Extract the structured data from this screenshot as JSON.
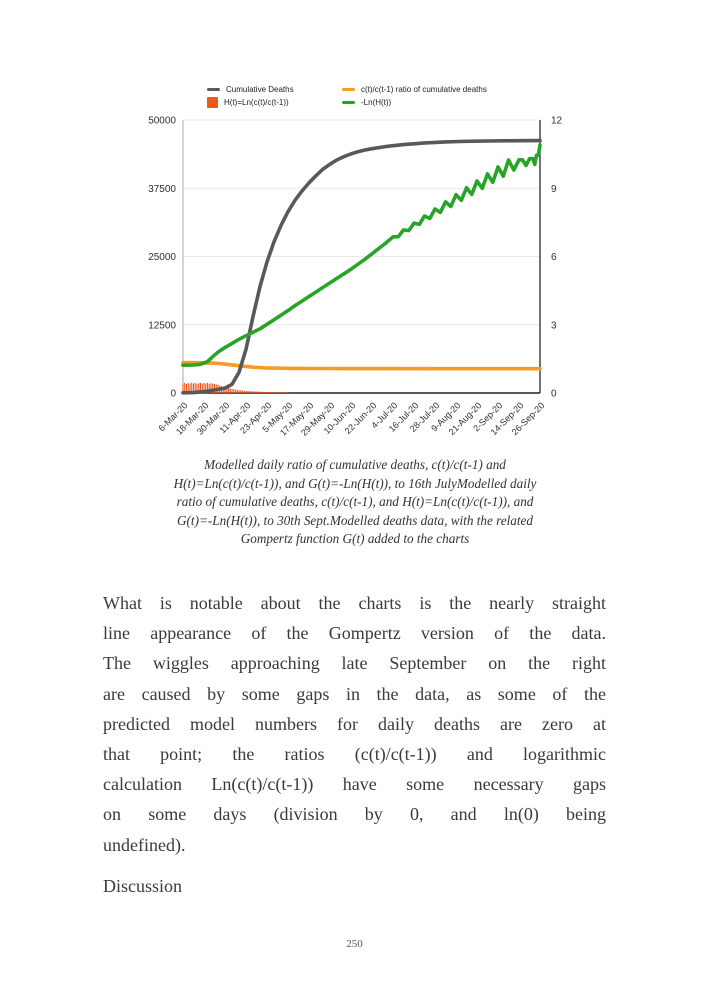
{
  "page": {
    "number": "250"
  },
  "section_heading": "Discussion",
  "figure": {
    "legend": [
      {
        "label": "Cumulative Deaths",
        "marker": "line",
        "color": "#59595b"
      },
      {
        "label": "c(t)/c(t-1) ratio of cumulative deaths",
        "marker": "line",
        "color": "#f79a28"
      },
      {
        "label": "H(t)=Ln(c(t)/c(t-1))",
        "marker": "square",
        "color": "#ee581c"
      },
      {
        "label": "-Ln(H(t))",
        "marker": "line",
        "color": "#28a428"
      }
    ],
    "caption_lines": [
      "Modelled daily ratio of cumulative deaths, c(t)/c(t-1) and",
      "H(t)=Ln(c(t)/c(t-1)), and G(t)=-Ln(H(t)), to 16th JulyModelled daily",
      "ratio of cumulative deaths, c(t)/c(t-1), and H(t)=Ln(c(t)/c(t-1)), and",
      "G(t)=-Ln(H(t)), to 30th Sept.Modelled deaths data, with the related",
      "Gompertz function G(t) added to the charts"
    ]
  },
  "body": {
    "lines": [
      "What is notable about the charts is the nearly straight",
      "line appearance of the Gompertz version of the data.",
      "The wiggles approaching late September on the right",
      "are caused by some gaps in the data, as some of the",
      "predicted model numbers for daily deaths are zero at",
      "that point; the ratios (c(t)/c(t-1)) and logarithmic",
      "calculation Ln(c(t)/c(t-1)) have some necessary gaps",
      "on some days (division by 0, and ln(0) being",
      "undefined)."
    ]
  },
  "chart_data": {
    "type": "line",
    "domain_days": [
      0,
      204
    ],
    "x_axis": {
      "tick_interval_days": 12,
      "categories": [
        "6-Mar-20",
        "18-Mar-20",
        "30-Mar-20",
        "11-Apr-20",
        "23-Apr-20",
        "5-May-20",
        "17-May-20",
        "29-May-20",
        "10-Jun-20",
        "22-Jun-20",
        "4-Jul-20",
        "16-Jul-20",
        "28-Jul-20",
        "9-Aug-20",
        "21-Aug-20",
        "2-Sep-20",
        "14-Sep-20",
        "26-Sep-20"
      ]
    },
    "left_axis": {
      "ticks": [
        0,
        12500,
        25000,
        37500,
        50000
      ],
      "range": [
        0,
        50000
      ]
    },
    "right_axis": {
      "ticks": [
        0,
        3,
        6,
        9,
        12
      ],
      "range": [
        0,
        12
      ]
    },
    "grid_color": "#e8e8e8",
    "series": [
      {
        "name": "Cumulative Deaths",
        "axis": "left",
        "type": "line",
        "color": "#59595b",
        "width": 3.6,
        "points": [
          [
            0,
            30
          ],
          [
            6,
            80
          ],
          [
            12,
            250
          ],
          [
            18,
            550
          ],
          [
            24,
            900
          ],
          [
            28,
            1600
          ],
          [
            32,
            3800
          ],
          [
            36,
            8000
          ],
          [
            40,
            14000
          ],
          [
            44,
            19500
          ],
          [
            48,
            24000
          ],
          [
            52,
            27700
          ],
          [
            56,
            30700
          ],
          [
            60,
            33200
          ],
          [
            64,
            35300
          ],
          [
            68,
            37000
          ],
          [
            72,
            38500
          ],
          [
            76,
            39800
          ],
          [
            80,
            41000
          ],
          [
            84,
            41900
          ],
          [
            88,
            42700
          ],
          [
            92,
            43300
          ],
          [
            96,
            43800
          ],
          [
            100,
            44200
          ],
          [
            104,
            44500
          ],
          [
            108,
            44750
          ],
          [
            112,
            44950
          ],
          [
            116,
            45150
          ],
          [
            120,
            45300
          ],
          [
            126,
            45500
          ],
          [
            132,
            45650
          ],
          [
            138,
            45800
          ],
          [
            144,
            45900
          ],
          [
            150,
            45980
          ],
          [
            158,
            46060
          ],
          [
            166,
            46120
          ],
          [
            174,
            46160
          ],
          [
            182,
            46190
          ],
          [
            192,
            46210
          ],
          [
            204,
            46220
          ]
        ]
      },
      {
        "name": "c(t)/c(t-1) ratio of cumulative deaths",
        "axis": "right",
        "type": "line",
        "color": "#f79a28",
        "width": 3.6,
        "points": [
          [
            0,
            1.33
          ],
          [
            8,
            1.33
          ],
          [
            12,
            1.325
          ],
          [
            16,
            1.315
          ],
          [
            20,
            1.3
          ],
          [
            24,
            1.27
          ],
          [
            28,
            1.235
          ],
          [
            32,
            1.2
          ],
          [
            36,
            1.165
          ],
          [
            40,
            1.135
          ],
          [
            44,
            1.115
          ],
          [
            48,
            1.1
          ],
          [
            52,
            1.093
          ],
          [
            58,
            1.087
          ],
          [
            64,
            1.083
          ],
          [
            72,
            1.079
          ],
          [
            82,
            1.076
          ],
          [
            95,
            1.074
          ],
          [
            115,
            1.072
          ],
          [
            150,
            1.07
          ],
          [
            204,
            1.07
          ]
        ]
      },
      {
        "name": "H(t)=Ln(c(t)/c(t-1))",
        "axis": "right",
        "type": "bar-markers",
        "color": "#ee581c",
        "start_day": 0,
        "values": [
          0.42,
          0.45,
          0.4,
          0.44,
          0.41,
          0.46,
          0.42,
          0.44,
          0.4,
          0.43,
          0.45,
          0.41,
          0.44,
          0.42,
          0.45,
          0.4,
          0.43,
          0.41,
          0.4,
          0.38,
          0.36,
          0.33,
          0.3,
          0.28,
          0.26,
          0.24,
          0.22,
          0.2,
          0.18,
          0.17,
          0.155,
          0.14,
          0.13,
          0.12,
          0.11,
          0.1,
          0.095,
          0.09,
          0.085,
          0.08,
          0.075,
          0.07,
          0.065,
          0.06,
          0.058,
          0.055,
          0.052,
          0.05,
          0.048,
          0.045,
          0.043,
          0.04,
          0.038,
          0.036,
          0.034,
          0.032,
          0.03,
          0.028,
          0.027,
          0.025,
          0.024
        ]
      },
      {
        "name": "-Ln(H(t))",
        "axis": "right",
        "type": "line",
        "color": "#28a428",
        "width": 3.6,
        "points": [
          [
            0,
            1.22
          ],
          [
            6,
            1.23
          ],
          [
            10,
            1.26
          ],
          [
            14,
            1.38
          ],
          [
            17,
            1.6
          ],
          [
            20,
            1.8
          ],
          [
            24,
            2.0
          ],
          [
            28,
            2.18
          ],
          [
            32,
            2.36
          ],
          [
            36,
            2.52
          ],
          [
            40,
            2.67
          ],
          [
            44,
            2.82
          ],
          [
            48,
            3.02
          ],
          [
            52,
            3.22
          ],
          [
            56,
            3.42
          ],
          [
            60,
            3.62
          ],
          [
            64,
            3.84
          ],
          [
            68,
            4.04
          ],
          [
            72,
            4.24
          ],
          [
            76,
            4.44
          ],
          [
            80,
            4.64
          ],
          [
            84,
            4.84
          ],
          [
            88,
            5.04
          ],
          [
            92,
            5.24
          ],
          [
            96,
            5.44
          ],
          [
            100,
            5.66
          ],
          [
            104,
            5.88
          ],
          [
            108,
            6.12
          ],
          [
            112,
            6.36
          ],
          [
            116,
            6.6
          ],
          [
            120,
            6.86
          ],
          [
            123,
            6.87
          ],
          [
            126,
            7.17
          ],
          [
            129,
            7.14
          ],
          [
            132,
            7.47
          ],
          [
            135,
            7.41
          ],
          [
            138,
            7.78
          ],
          [
            141,
            7.67
          ],
          [
            144,
            8.09
          ],
          [
            147,
            7.94
          ],
          [
            150,
            8.4
          ],
          [
            153,
            8.2
          ],
          [
            156,
            8.71
          ],
          [
            159,
            8.47
          ],
          [
            162,
            9.02
          ],
          [
            165,
            8.73
          ],
          [
            168,
            9.32
          ],
          [
            171,
            9.0
          ],
          [
            174,
            9.63
          ],
          [
            177,
            9.26
          ],
          [
            180,
            9.94
          ],
          [
            183,
            9.53
          ],
          [
            186,
            10.24
          ],
          [
            189,
            9.8
          ],
          [
            192,
            10.25
          ],
          [
            194,
            10.25
          ],
          [
            196,
            10.0
          ],
          [
            198,
            10.3
          ],
          [
            200,
            10.3
          ],
          [
            201,
            10.05
          ],
          [
            202,
            10.45
          ],
          [
            203,
            10.45
          ],
          [
            204,
            10.9
          ]
        ]
      }
    ]
  }
}
